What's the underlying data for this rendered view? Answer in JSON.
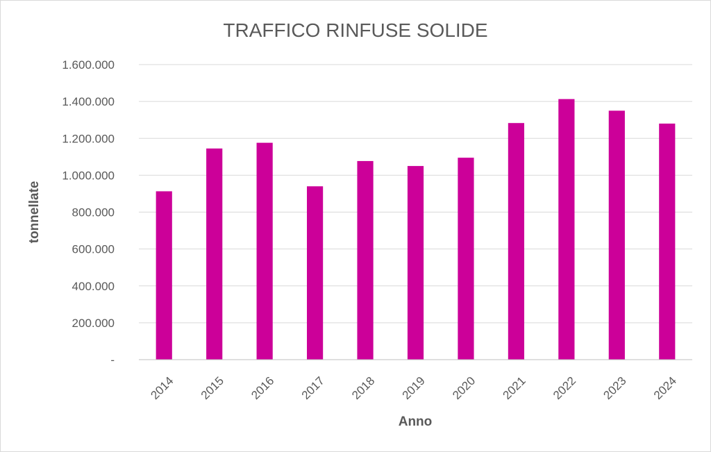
{
  "chart_data": {
    "type": "bar",
    "title": "TRAFFICO RINFUSE SOLIDE",
    "xlabel": "Anno",
    "ylabel": "tonnellate",
    "categories": [
      "2014",
      "2015",
      "2016",
      "2017",
      "2018",
      "2019",
      "2020",
      "2021",
      "2022",
      "2023",
      "2024"
    ],
    "values": [
      913000,
      1145000,
      1176000,
      940000,
      1077000,
      1050000,
      1095000,
      1283000,
      1413000,
      1350000,
      1280000
    ],
    "ylim": [
      0,
      1600000
    ],
    "yticks": [
      0,
      200000,
      400000,
      600000,
      800000,
      1000000,
      1200000,
      1400000,
      1600000
    ],
    "ytick_labels": [
      "-",
      "200.000",
      "400.000",
      "600.000",
      "800.000",
      "1.000.000",
      "1.200.000",
      "1.400.000",
      "1.600.000"
    ],
    "bar_color": "#cc0099",
    "grid": true,
    "legend": "none"
  }
}
